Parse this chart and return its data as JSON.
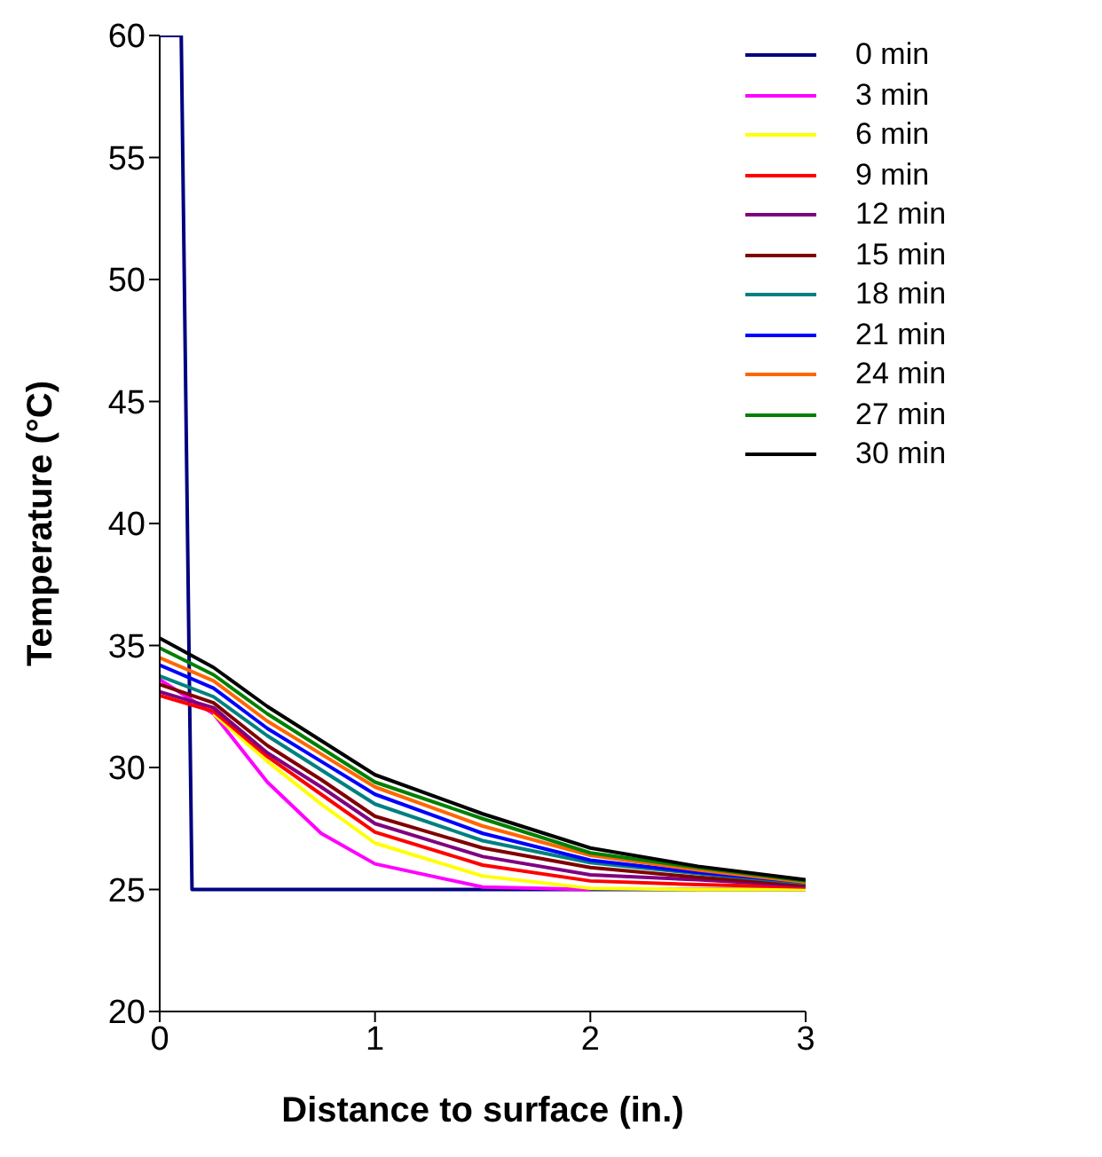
{
  "chart_data": {
    "type": "line",
    "xlabel": "Distance to surface (in.)",
    "ylabel": "Temperature (°C)",
    "x": [
      0,
      0.25,
      0.5,
      0.75,
      1,
      1.5,
      2,
      2.5,
      3
    ],
    "xlim": [
      0,
      3
    ],
    "xticks": [
      0,
      1,
      2,
      3
    ],
    "ylim": [
      20,
      60
    ],
    "yticks": [
      20,
      25,
      30,
      35,
      40,
      45,
      50,
      55,
      60
    ],
    "grid": false,
    "legend": "top right",
    "marker": "none",
    "line_style": "solid",
    "series": [
      {
        "name": "0 min",
        "color": "#000080",
        "x": [
          0,
          0.1,
          0.15,
          3
        ],
        "values": [
          60,
          60,
          25,
          25
        ]
      },
      {
        "name": "3 min",
        "color": "#ff00ff",
        "values": [
          33.6,
          32.2,
          29.4,
          27.3,
          26.05,
          25.1,
          25.0,
          null,
          null
        ]
      },
      {
        "name": "6 min",
        "color": "#ffff00",
        "values": [
          null,
          32.2,
          30.25,
          28.5,
          26.9,
          25.55,
          25.05,
          25.0,
          25.0
        ]
      },
      {
        "name": "9 min",
        "color": "#ff0000",
        "values": [
          32.95,
          32.3,
          30.45,
          28.9,
          27.35,
          26.0,
          25.35,
          25.2,
          25.1
        ]
      },
      {
        "name": "12 min",
        "color": "#800080",
        "values": [
          33.1,
          32.45,
          30.6,
          29.2,
          27.7,
          26.35,
          25.6,
          25.4,
          25.15
        ]
      },
      {
        "name": "15 min",
        "color": "#800000",
        "values": [
          33.4,
          32.65,
          30.9,
          29.5,
          28.0,
          26.7,
          25.9,
          25.5,
          25.2
        ]
      },
      {
        "name": "18 min",
        "color": "#008080",
        "values": [
          33.75,
          32.9,
          31.3,
          29.9,
          28.5,
          27.0,
          26.1,
          25.65,
          25.25
        ]
      },
      {
        "name": "21 min",
        "color": "#0000ff",
        "values": [
          34.2,
          33.25,
          31.6,
          30.25,
          28.9,
          27.3,
          26.2,
          25.7,
          25.3
        ]
      },
      {
        "name": "24 min",
        "color": "#ff6600",
        "values": [
          34.5,
          33.55,
          31.9,
          30.55,
          29.2,
          27.6,
          26.4,
          25.8,
          25.3
        ]
      },
      {
        "name": "27 min",
        "color": "#008000",
        "values": [
          34.9,
          33.8,
          32.2,
          30.8,
          29.4,
          27.9,
          26.5,
          25.9,
          25.35
        ]
      },
      {
        "name": "30 min",
        "color": "#000000",
        "values": [
          35.3,
          34.1,
          32.5,
          31.1,
          29.7,
          28.1,
          26.7,
          25.95,
          25.4
        ]
      }
    ]
  }
}
